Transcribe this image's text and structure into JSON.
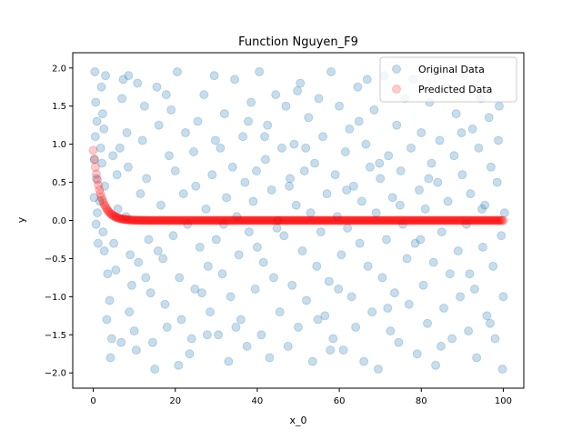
{
  "chart_data": {
    "type": "scatter",
    "title": "Function Nguyen_F9",
    "xlabel": "x_0",
    "ylabel": "y",
    "xlim": [
      -5,
      105
    ],
    "ylim": [
      -2.2,
      2.2
    ],
    "x_ticks": [
      "0",
      "20",
      "40",
      "60",
      "80",
      "100"
    ],
    "y_ticks": [
      "−2.0",
      "−1.5",
      "−1.0",
      "−0.5",
      "0.0",
      "0.5",
      "1.0",
      "1.5",
      "2.0"
    ],
    "legend_position": "top-right",
    "grid": false,
    "series": [
      {
        "name": "Original Data",
        "color": "#1f77b4",
        "alpha": 0.25,
        "points": [
          [
            0.4,
            1.95
          ],
          [
            0.6,
            1.55
          ],
          [
            0.9,
            1.3
          ],
          [
            0.5,
            1.1
          ],
          [
            0.3,
            0.8
          ],
          [
            0.8,
            0.55
          ],
          [
            0.2,
            0.3
          ],
          [
            1.0,
            0.1
          ],
          [
            0.7,
            -0.05
          ],
          [
            2.0,
            1.75
          ],
          [
            2.3,
            1.4
          ],
          [
            2.6,
            1.2
          ],
          [
            1.8,
            0.95
          ],
          [
            2.1,
            0.75
          ],
          [
            2.8,
            0.45
          ],
          [
            1.6,
            0.25
          ],
          [
            2.4,
            -0.15
          ],
          [
            2.7,
            -0.4
          ],
          [
            3.5,
            -0.7
          ],
          [
            4.0,
            -1.05
          ],
          [
            3.3,
            -1.3
          ],
          [
            4.5,
            -1.55
          ],
          [
            4.2,
            -1.8
          ],
          [
            5.5,
            -0.65
          ],
          [
            5.0,
            -0.3
          ],
          [
            6.0,
            0.15
          ],
          [
            5.8,
            0.6
          ],
          [
            6.5,
            0.95
          ],
          [
            7.0,
            1.6
          ],
          [
            7.3,
            1.85
          ],
          [
            8.2,
            1.15
          ],
          [
            8.5,
            0.7
          ],
          [
            8.0,
            0.05
          ],
          [
            9.0,
            -0.45
          ],
          [
            9.4,
            -0.85
          ],
          [
            8.8,
            -1.2
          ],
          [
            10.0,
            -1.45
          ],
          [
            10.5,
            -1.7
          ],
          [
            11.0,
            -0.55
          ],
          [
            11.5,
            0.35
          ],
          [
            12.0,
            1.05
          ],
          [
            12.5,
            1.5
          ],
          [
            13.0,
            0.55
          ],
          [
            13.5,
            -0.25
          ],
          [
            14.0,
            -0.95
          ],
          [
            14.5,
            -1.6
          ],
          [
            15.0,
            -1.95
          ],
          [
            15.5,
            1.75
          ],
          [
            16.0,
            1.25
          ],
          [
            16.5,
            0.2
          ],
          [
            17.0,
            -0.5
          ],
          [
            17.5,
            -1.1
          ],
          [
            18.0,
            -1.4
          ],
          [
            18.5,
            0.85
          ],
          [
            19.0,
            1.45
          ],
          [
            19.5,
            -0.2
          ],
          [
            20.0,
            0.65
          ],
          [
            20.5,
            1.95
          ],
          [
            21.0,
            -0.75
          ],
          [
            21.5,
            -1.3
          ],
          [
            22.0,
            0.35
          ],
          [
            22.5,
            1.15
          ],
          [
            23.0,
            -0.05
          ],
          [
            23.5,
            -1.75
          ],
          [
            24.0,
            -1.55
          ],
          [
            24.5,
            0.9
          ],
          [
            25.0,
            0.45
          ],
          [
            25.5,
            1.3
          ],
          [
            26.0,
            -0.35
          ],
          [
            26.5,
            -0.95
          ],
          [
            27.0,
            1.65
          ],
          [
            27.5,
            0.15
          ],
          [
            28.0,
            -0.6
          ],
          [
            28.5,
            -1.2
          ],
          [
            29.0,
            0.6
          ],
          [
            29.5,
            1.9
          ],
          [
            30.0,
            -0.25
          ],
          [
            30.5,
            -1.5
          ],
          [
            31.0,
            0.95
          ],
          [
            31.5,
            -0.7
          ],
          [
            32.0,
            1.4
          ],
          [
            32.5,
            0.3
          ],
          [
            33.0,
            -1.85
          ],
          [
            33.5,
            -1.0
          ],
          [
            34.0,
            0.7
          ],
          [
            34.5,
            1.85
          ],
          [
            35.0,
            0.05
          ],
          [
            35.5,
            -0.45
          ],
          [
            36.0,
            -1.3
          ],
          [
            36.5,
            1.1
          ],
          [
            37.0,
            0.5
          ],
          [
            37.5,
            -1.65
          ],
          [
            38.0,
            -0.15
          ],
          [
            38.5,
            1.55
          ],
          [
            39.0,
            0.25
          ],
          [
            39.5,
            -0.9
          ],
          [
            40.0,
            -0.35
          ],
          [
            40.5,
            1.95
          ],
          [
            41.0,
            -1.5
          ],
          [
            41.5,
            -0.55
          ],
          [
            42.0,
            0.8
          ],
          [
            42.5,
            1.25
          ],
          [
            43.0,
            -1.8
          ],
          [
            43.5,
            0.4
          ],
          [
            44.0,
            -0.75
          ],
          [
            44.5,
            1.65
          ],
          [
            45.0,
            0.0
          ],
          [
            45.5,
            -1.2
          ],
          [
            46.0,
            0.95
          ],
          [
            46.5,
            -0.2
          ],
          [
            47.0,
            1.5
          ],
          [
            47.5,
            -1.65
          ],
          [
            48.0,
            0.55
          ],
          [
            48.5,
            -0.85
          ],
          [
            49.0,
            1.0
          ],
          [
            49.5,
            0.2
          ],
          [
            50.0,
            -1.4
          ],
          [
            50.5,
            1.8
          ],
          [
            51.0,
            -0.4
          ],
          [
            51.5,
            0.65
          ],
          [
            52.0,
            -1.05
          ],
          [
            52.5,
            1.35
          ],
          [
            53.0,
            0.1
          ],
          [
            53.5,
            -1.85
          ],
          [
            54.0,
            0.75
          ],
          [
            54.5,
            -0.6
          ],
          [
            55.0,
            1.6
          ],
          [
            55.5,
            -0.15
          ],
          [
            56.0,
            1.1
          ],
          [
            56.5,
            -1.25
          ],
          [
            57.0,
            0.35
          ],
          [
            57.5,
            -0.8
          ],
          [
            58.0,
            1.95
          ],
          [
            58.5,
            -1.55
          ],
          [
            59.0,
            0.6
          ],
          [
            59.5,
            0.05
          ],
          [
            60.0,
            1.5
          ],
          [
            60.5,
            -0.45
          ],
          [
            61.0,
            -1.7
          ],
          [
            61.5,
            0.9
          ],
          [
            62.0,
            -0.1
          ],
          [
            62.5,
            1.2
          ],
          [
            63.0,
            -1.0
          ],
          [
            63.5,
            0.45
          ],
          [
            64.0,
            -1.4
          ],
          [
            64.5,
            1.75
          ],
          [
            65.0,
            -0.3
          ],
          [
            65.5,
            0.25
          ],
          [
            66.0,
            -1.85
          ],
          [
            66.5,
            1.0
          ],
          [
            67.0,
            -0.6
          ],
          [
            67.5,
            0.7
          ],
          [
            68.0,
            -1.2
          ],
          [
            68.5,
            1.45
          ],
          [
            69.0,
            0.1
          ],
          [
            69.5,
            -1.95
          ],
          [
            70.0,
            0.55
          ],
          [
            70.5,
            -0.75
          ],
          [
            71.0,
            1.9
          ],
          [
            71.5,
            -0.25
          ],
          [
            72.0,
            0.85
          ],
          [
            72.5,
            -1.45
          ],
          [
            73.0,
            0.3
          ],
          [
            73.5,
            -0.95
          ],
          [
            74.0,
            1.25
          ],
          [
            74.5,
            -1.6
          ],
          [
            75.0,
            0.65
          ],
          [
            75.5,
            -0.05
          ],
          [
            76.0,
            1.6
          ],
          [
            76.5,
            -0.5
          ],
          [
            77.0,
            -1.1
          ],
          [
            77.5,
            0.95
          ],
          [
            78.0,
            1.85
          ],
          [
            78.5,
            -0.3
          ],
          [
            79.0,
            -1.75
          ],
          [
            79.5,
            0.4
          ],
          [
            80.0,
            1.15
          ],
          [
            80.5,
            -0.85
          ],
          [
            81.0,
            0.15
          ],
          [
            81.5,
            -1.35
          ],
          [
            82.0,
            1.55
          ],
          [
            82.5,
            0.75
          ],
          [
            83.0,
            -0.55
          ],
          [
            83.5,
            -1.9
          ],
          [
            84.0,
            0.5
          ],
          [
            84.5,
            1.05
          ],
          [
            85.0,
            -0.15
          ],
          [
            85.5,
            -1.15
          ],
          [
            86.0,
            1.75
          ],
          [
            86.5,
            0.25
          ],
          [
            87.0,
            -0.7
          ],
          [
            87.5,
            -1.55
          ],
          [
            88.0,
            0.85
          ],
          [
            88.5,
            1.4
          ],
          [
            89.0,
            -0.4
          ],
          [
            89.5,
            -1.0
          ],
          [
            90.0,
            0.6
          ],
          [
            90.5,
            1.9
          ],
          [
            91.0,
            -0.05
          ],
          [
            91.5,
            -1.45
          ],
          [
            92.0,
            0.35
          ],
          [
            92.5,
            1.2
          ],
          [
            93.0,
            -0.9
          ],
          [
            93.5,
            -1.8
          ],
          [
            94.0,
            0.95
          ],
          [
            94.5,
            1.6
          ],
          [
            95.0,
            -0.35
          ],
          [
            95.5,
            0.2
          ],
          [
            96.0,
            -1.25
          ],
          [
            96.5,
            1.35
          ],
          [
            97.0,
            0.7
          ],
          [
            97.5,
            -0.6
          ],
          [
            98.0,
            -1.55
          ],
          [
            98.5,
            0.5
          ],
          [
            99.0,
            1.5
          ],
          [
            99.5,
            -0.2
          ],
          [
            100.0,
            -1.0
          ],
          [
            100.3,
            0.1
          ],
          [
            99.8,
            -1.95
          ],
          [
            1.2,
            -0.3
          ],
          [
            3.0,
            1.9
          ],
          [
            6.8,
            -1.6
          ],
          [
            10.8,
            1.8
          ],
          [
            15.8,
            -0.4
          ],
          [
            20.8,
            -1.9
          ],
          [
            24.8,
            -0.9
          ],
          [
            29.8,
            1.05
          ],
          [
            34.8,
            -1.4
          ],
          [
            39.8,
            0.65
          ],
          [
            44.8,
            -0.1
          ],
          [
            49.8,
            1.7
          ],
          [
            54.8,
            -1.3
          ],
          [
            59.8,
            -0.9
          ],
          [
            64.8,
            1.3
          ],
          [
            69.8,
            0.75
          ],
          [
            74.8,
            0.2
          ],
          [
            79.8,
            -0.25
          ],
          [
            84.8,
            -1.65
          ],
          [
            89.8,
            1.15
          ],
          [
            94.8,
            0.15
          ],
          [
            98.8,
            1.05
          ],
          [
            66.8,
            1.85
          ],
          [
            57.8,
            -1.7
          ],
          [
            47.8,
            0.45
          ],
          [
            37.8,
            1.3
          ],
          [
            27.8,
            -1.5
          ],
          [
            17.8,
            1.65
          ],
          [
            12.8,
            -0.75
          ],
          [
            8.6,
            1.9
          ],
          [
            4.8,
            0.85
          ],
          [
            31.8,
            -0.05
          ],
          [
            41.8,
            1.1
          ],
          [
            51.8,
            0.95
          ],
          [
            61.8,
            0.4
          ],
          [
            71.8,
            -1.15
          ],
          [
            81.8,
            0.55
          ],
          [
            91.8,
            -0.7
          ],
          [
            96.8,
            -1.35
          ]
        ]
      },
      {
        "name": "Predicted Data",
        "color": "#ff0000",
        "alpha": 0.2,
        "function": "0.92 * exp(-0.55 * x)",
        "x_start": 0,
        "x_end": 100,
        "n_points": 400
      }
    ]
  }
}
